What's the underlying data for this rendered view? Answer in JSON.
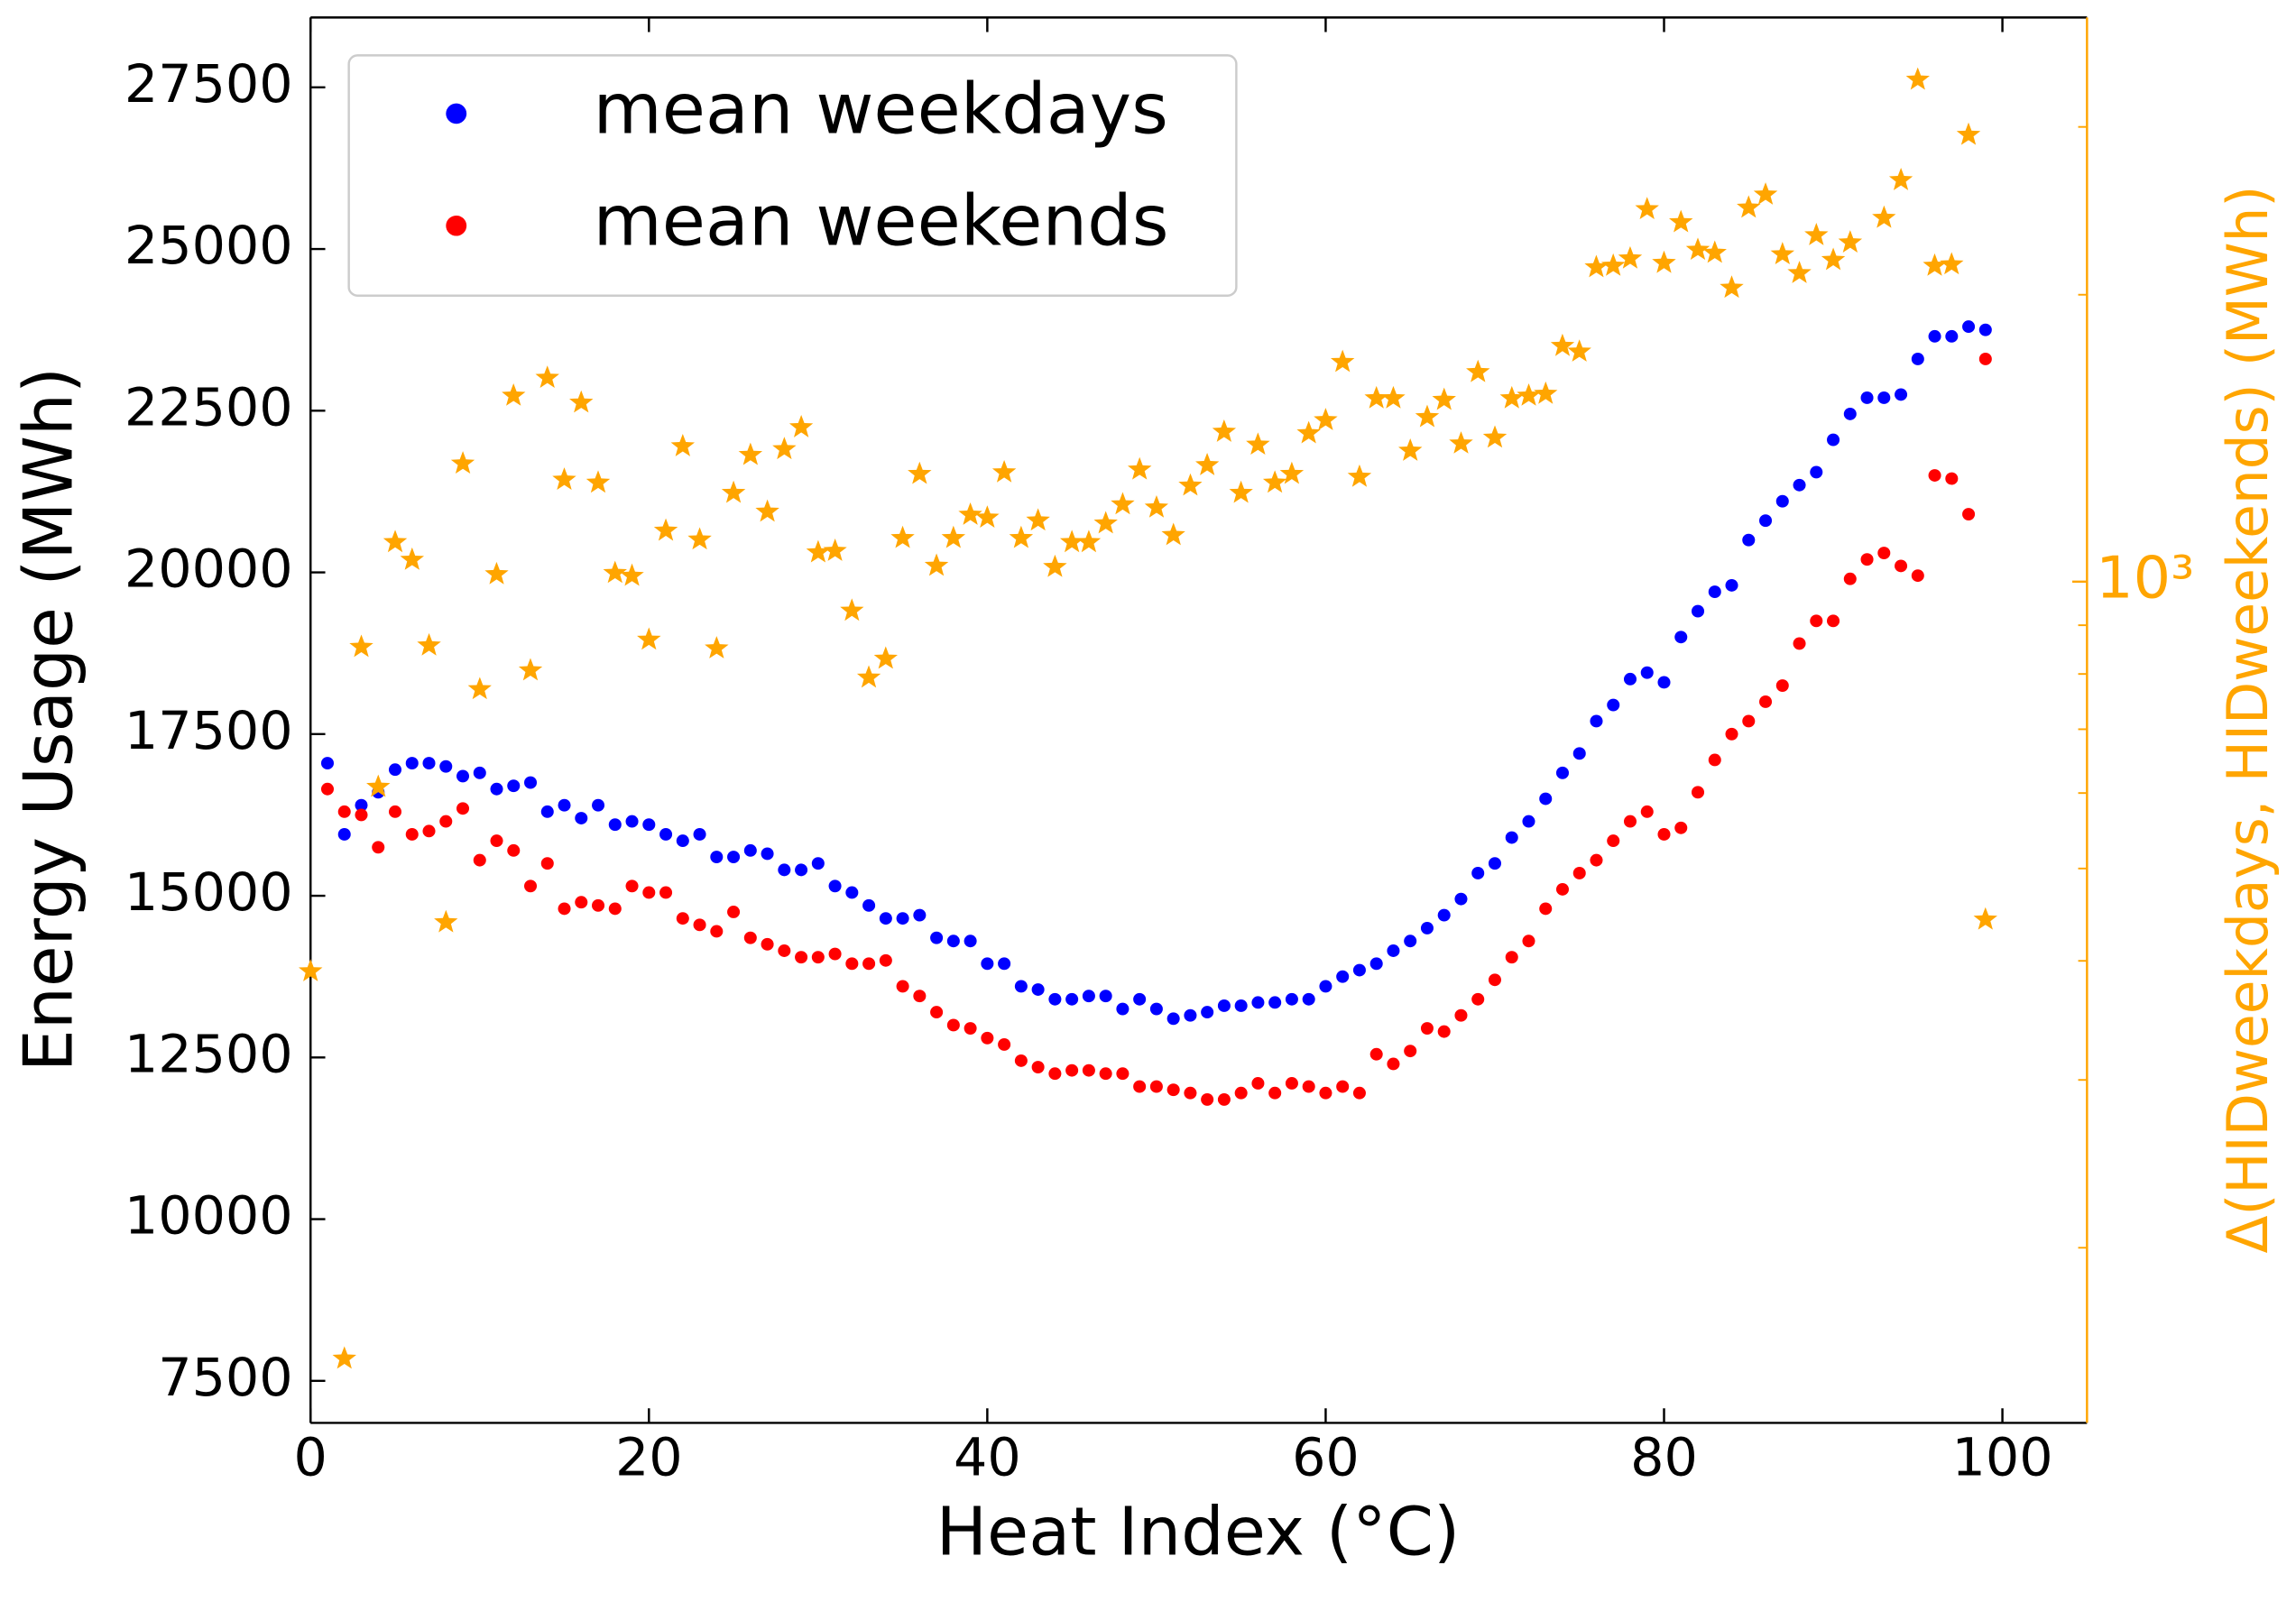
{
  "chart_data": {
    "type": "scatter",
    "xlabel": "Heat Index (°C)",
    "ylabel": "Energy Usage (MWh)",
    "y2label": "Δ(HIDweekdays, HIDweekends) (MWh)",
    "xlim": [
      0,
      105
    ],
    "ylim": [
      6850,
      28580
    ],
    "y2lim": [
      131,
      3908
    ],
    "y2scale": "log",
    "xticks": [
      0,
      20,
      40,
      60,
      80,
      100
    ],
    "yticks": [
      7500,
      10000,
      12500,
      15000,
      17500,
      20000,
      22500,
      25000,
      27500
    ],
    "y2ticks": [
      {
        "value": 1000,
        "label": "10³"
      }
    ],
    "y2minorticks": [
      200,
      300,
      400,
      500,
      600,
      700,
      800,
      900,
      2000,
      3000
    ],
    "y2color": "orange",
    "legend": "upper left",
    "series": [
      {
        "name": "mean weekdays",
        "color": "blue",
        "marker": "circle",
        "x": [
          1,
          2,
          3,
          4,
          5,
          6,
          7,
          8,
          9,
          10,
          11,
          12,
          13,
          14,
          15,
          16,
          17,
          18,
          19,
          20,
          21,
          22,
          23,
          24,
          25,
          26,
          27,
          28,
          29,
          30,
          31,
          32,
          33,
          34,
          35,
          36,
          37,
          38,
          39,
          40,
          41,
          42,
          43,
          44,
          45,
          46,
          47,
          48,
          49,
          50,
          51,
          52,
          53,
          54,
          55,
          56,
          57,
          58,
          59,
          60,
          61,
          62,
          63,
          64,
          65,
          66,
          67,
          68,
          69,
          70,
          71,
          72,
          73,
          74,
          75,
          76,
          77,
          78,
          79,
          80,
          81,
          82,
          83,
          84,
          85,
          86,
          87,
          88,
          89,
          90,
          91,
          92,
          93,
          94,
          95,
          96,
          97,
          98,
          99
        ],
        "values": [
          17050,
          15950,
          16400,
          16600,
          16950,
          17050,
          17050,
          17000,
          16850,
          16900,
          16650,
          16700,
          16750,
          16300,
          16400,
          16200,
          16400,
          16100,
          16150,
          16100,
          15950,
          15850,
          15950,
          15600,
          15600,
          15700,
          15650,
          15400,
          15400,
          15500,
          15150,
          15050,
          14850,
          14650,
          14650,
          14700,
          14350,
          14300,
          14300,
          13950,
          13950,
          13600,
          13550,
          13400,
          13400,
          13450,
          13450,
          13250,
          13400,
          13250,
          13100,
          13150,
          13200,
          13300,
          13300,
          13350,
          13350,
          13400,
          13400,
          13600,
          13750,
          13850,
          13950,
          14150,
          14300,
          14500,
          14700,
          14950,
          15350,
          15500,
          15900,
          16150,
          16500,
          16900,
          17200,
          17700,
          17950,
          18350,
          18450,
          18300,
          19000,
          19400,
          19700,
          19800,
          20500,
          20800,
          21100,
          21350,
          21550,
          22050,
          22450,
          22700,
          22700,
          22750,
          23300,
          23650,
          23650,
          23800,
          23750
        ]
      },
      {
        "name": "mean weekends",
        "color": "red",
        "marker": "circle",
        "x": [
          1,
          2,
          3,
          4,
          5,
          6,
          7,
          8,
          9,
          10,
          11,
          12,
          13,
          14,
          15,
          16,
          17,
          18,
          19,
          20,
          21,
          22,
          23,
          24,
          25,
          26,
          27,
          28,
          29,
          30,
          31,
          32,
          33,
          34,
          35,
          36,
          37,
          38,
          39,
          40,
          41,
          42,
          43,
          44,
          45,
          46,
          47,
          48,
          49,
          50,
          51,
          52,
          53,
          54,
          55,
          56,
          57,
          58,
          59,
          60,
          61,
          62,
          63,
          64,
          65,
          66,
          67,
          68,
          69,
          70,
          71,
          72,
          73,
          74,
          75,
          76,
          77,
          78,
          79,
          80,
          81,
          82,
          83,
          84,
          85,
          86,
          87,
          88,
          89,
          90,
          91,
          92,
          93,
          94,
          95,
          96,
          97,
          98,
          99
        ],
        "values": [
          16650,
          16300,
          16250,
          15750,
          16300,
          15950,
          16000,
          16150,
          16350,
          15550,
          15850,
          15700,
          15150,
          15500,
          14800,
          14900,
          14850,
          14800,
          15150,
          15050,
          15050,
          14650,
          14550,
          14450,
          14750,
          14350,
          14250,
          14150,
          14050,
          14050,
          14100,
          13950,
          13950,
          14000,
          13600,
          13450,
          13200,
          13000,
          12950,
          12800,
          12700,
          12450,
          12350,
          12250,
          12300,
          12300,
          12250,
          12250,
          12050,
          12050,
          12000,
          11950,
          11850,
          11850,
          11950,
          12100,
          11950,
          12100,
          12050,
          11950,
          12050,
          11950,
          12550,
          12400,
          12600,
          12950,
          12900,
          13150,
          13400,
          13700,
          14050,
          14300,
          14800,
          15100,
          15350,
          15550,
          15850,
          16150,
          16300,
          15950,
          16050,
          16600,
          17100,
          17500,
          17700,
          18000,
          18250,
          18900,
          19250,
          19250,
          19900,
          20200,
          20300,
          20100,
          19950,
          21500,
          21450,
          20900,
          23300
        ]
      },
      {
        "color": "orange",
        "marker": "star",
        "axis": "y2",
        "x": [
          0,
          2,
          3,
          4,
          5,
          6,
          7,
          8,
          9,
          10,
          11,
          12,
          13,
          14,
          15,
          16,
          17,
          18,
          19,
          20,
          21,
          22,
          23,
          24,
          25,
          26,
          27,
          28,
          29,
          30,
          31,
          32,
          33,
          34,
          35,
          36,
          37,
          38,
          39,
          40,
          41,
          42,
          43,
          44,
          45,
          46,
          47,
          48,
          49,
          50,
          51,
          52,
          53,
          54,
          55,
          56,
          57,
          58,
          59,
          60,
          61,
          62,
          63,
          64,
          65,
          66,
          67,
          68,
          69,
          70,
          71,
          72,
          73,
          74,
          75,
          76,
          77,
          78,
          79,
          80,
          81,
          82,
          83,
          84,
          85,
          86,
          87,
          88,
          89,
          90,
          91,
          93,
          94,
          95,
          96,
          97,
          98,
          99
        ],
        "values": [
          390,
          153,
          854,
          609,
          1100,
          1054,
          857,
          439,
          1330,
          771,
          1018,
          1567,
          807,
          1636,
          1279,
          1541,
          1270,
          1021,
          1014,
          869,
          1131,
          1387,
          1107,
          851,
          1239,
          1358,
          1184,
          1377,
          1452,
          1073,
          1077,
          932,
          793,
          830,
          1111,
          1297,
          1039,
          1111,
          1175,
          1167,
          1302,
          1111,
          1159,
          1036,
          1100,
          1100,
          1151,
          1205,
          1311,
          1196,
          1119,
          1261,
          1325,
          1436,
          1239,
          1392,
          1270,
          1297,
          1431,
          1477,
          1700,
          1288,
          1557,
          1557,
          1372,
          1488,
          1551,
          1396,
          1659,
          1416,
          1557,
          1567,
          1574,
          1767,
          1743,
          2137,
          2145,
          2183,
          2459,
          2160,
          2383,
          2229,
          2213,
          2034,
          2468,
          2547,
          2205,
          2107,
          2309,
          2175,
          2269,
          2408,
          2638,
          3363,
          2145,
          2152,
          2943,
          442
        ]
      }
    ]
  }
}
